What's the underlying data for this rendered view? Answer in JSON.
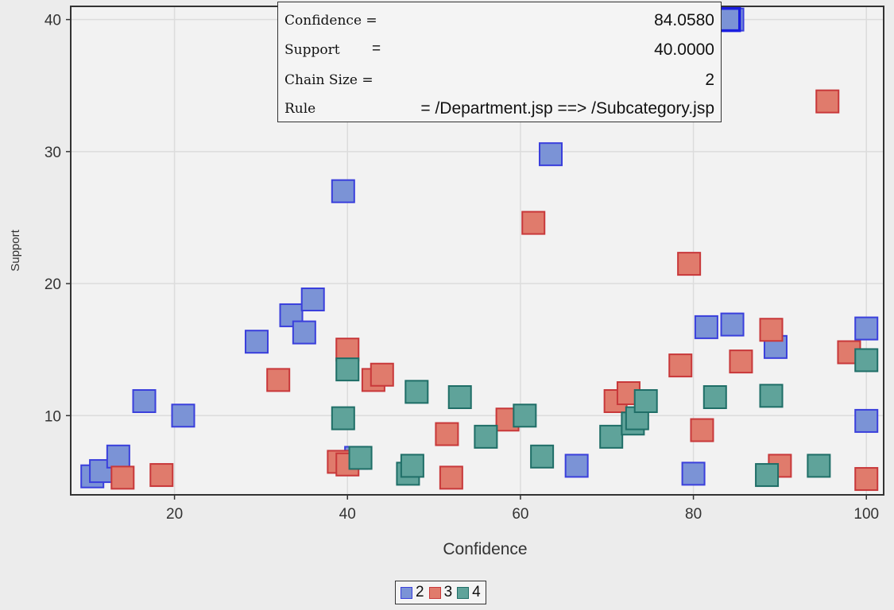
{
  "chart_data": {
    "type": "scatter",
    "xlabel": "Confidence",
    "ylabel": "Support",
    "xlim": [
      8,
      102
    ],
    "ylim": [
      4,
      41
    ],
    "x_ticks": [
      20,
      40,
      60,
      80,
      100
    ],
    "y_ticks": [
      10,
      20,
      30,
      40
    ],
    "grid": true,
    "marker": "square",
    "legend_position": "bottom-center",
    "series": [
      {
        "name": "2",
        "fill": "#7b93d6",
        "stroke": "#3a3fdc",
        "points": [
          [
            10.5,
            5.4
          ],
          [
            11.5,
            5.8
          ],
          [
            13.5,
            6.9
          ],
          [
            16.5,
            11.1
          ],
          [
            21,
            10
          ],
          [
            29.5,
            15.6
          ],
          [
            33.5,
            17.6
          ],
          [
            35,
            16.3
          ],
          [
            36,
            18.8
          ],
          [
            39.5,
            27
          ],
          [
            41,
            6.8
          ],
          [
            63.5,
            29.8
          ],
          [
            66.5,
            6.2
          ],
          [
            80,
            5.6
          ],
          [
            81.5,
            16.7
          ],
          [
            84.5,
            16.9
          ],
          [
            84.5,
            40
          ],
          [
            89.5,
            15.2
          ],
          [
            100,
            16.6
          ],
          [
            100,
            9.6
          ]
        ]
      },
      {
        "name": "3",
        "fill": "#e07b6c",
        "stroke": "#c8383a",
        "points": [
          [
            14,
            5.3
          ],
          [
            18.5,
            5.5
          ],
          [
            32,
            12.7
          ],
          [
            39,
            6.5
          ],
          [
            40,
            15
          ],
          [
            40,
            6.3
          ],
          [
            43,
            12.7
          ],
          [
            44,
            13.1
          ],
          [
            51.5,
            8.6
          ],
          [
            52,
            5.3
          ],
          [
            58.5,
            9.7
          ],
          [
            61.5,
            24.6
          ],
          [
            71,
            11.1
          ],
          [
            72.5,
            11.7
          ],
          [
            78.5,
            13.8
          ],
          [
            79.5,
            21.5
          ],
          [
            81,
            8.9
          ],
          [
            85.5,
            14.1
          ],
          [
            89,
            16.5
          ],
          [
            90,
            6.2
          ],
          [
            95.5,
            33.8
          ],
          [
            98,
            14.8
          ],
          [
            100,
            5.2
          ]
        ]
      },
      {
        "name": "4",
        "fill": "#5fa39a",
        "stroke": "#1f6e67",
        "points": [
          [
            39.5,
            9.8
          ],
          [
            40,
            13.5
          ],
          [
            41.5,
            6.8
          ],
          [
            47,
            5.6
          ],
          [
            47.5,
            6.2
          ],
          [
            48,
            11.8
          ],
          [
            53,
            11.4
          ],
          [
            56,
            8.4
          ],
          [
            60.5,
            10
          ],
          [
            62.5,
            6.9
          ],
          [
            70.5,
            8.4
          ],
          [
            73,
            9.4
          ],
          [
            73.5,
            9.8
          ],
          [
            74.5,
            11.1
          ],
          [
            82.5,
            11.4
          ],
          [
            88.5,
            5.5
          ],
          [
            89,
            11.5
          ],
          [
            94.5,
            6.2
          ],
          [
            100,
            14.2
          ]
        ]
      }
    ],
    "highlighted_point": {
      "series": "2",
      "x": 84.058,
      "y": 40
    }
  },
  "tooltip": {
    "rows": [
      {
        "key": "Confidence =",
        "eq": "",
        "value": "84.0580"
      },
      {
        "key": "Support",
        "eq": "=",
        "value": "40.0000"
      },
      {
        "key": "Chain  Size =",
        "eq": "",
        "value": "2"
      },
      {
        "key": "Rule",
        "eq": "",
        "value": "=  /Department.jsp ==> /Subcategory.jsp"
      }
    ]
  }
}
